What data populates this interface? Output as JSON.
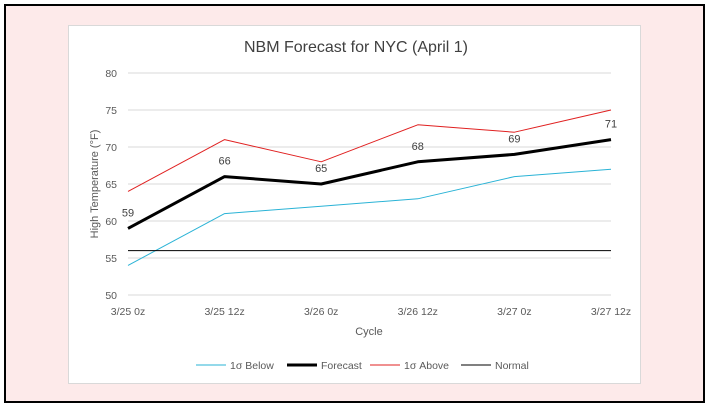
{
  "chart_data": {
    "type": "line",
    "title": "NBM Forecast for NYC (April 1)",
    "xlabel": "Cycle",
    "ylabel": "High Temperature (°F)",
    "categories": [
      "3/25 0z",
      "3/25 12z",
      "3/26 0z",
      "3/26 12z",
      "3/27 0z",
      "3/27 12z"
    ],
    "ylim": [
      50,
      80
    ],
    "yticks": [
      50,
      55,
      60,
      65,
      70,
      75,
      80
    ],
    "grid": true,
    "legend_position": "bottom",
    "series": [
      {
        "name": "1σ Below",
        "values": [
          54,
          61,
          62,
          63,
          66,
          67
        ],
        "color": "#2ab3d6",
        "width": 1,
        "labels": false
      },
      {
        "name": "Forecast",
        "values": [
          59,
          66,
          65,
          68,
          69,
          71
        ],
        "color": "#000000",
        "width": 3,
        "labels": true
      },
      {
        "name": "1σ Above",
        "values": [
          64,
          71,
          68,
          73,
          72,
          75
        ],
        "color": "#e02020",
        "width": 1,
        "labels": false
      },
      {
        "name": "Normal",
        "values": [
          56,
          56,
          56,
          56,
          56,
          56
        ],
        "color": "#000000",
        "width": 1,
        "labels": false
      }
    ]
  }
}
